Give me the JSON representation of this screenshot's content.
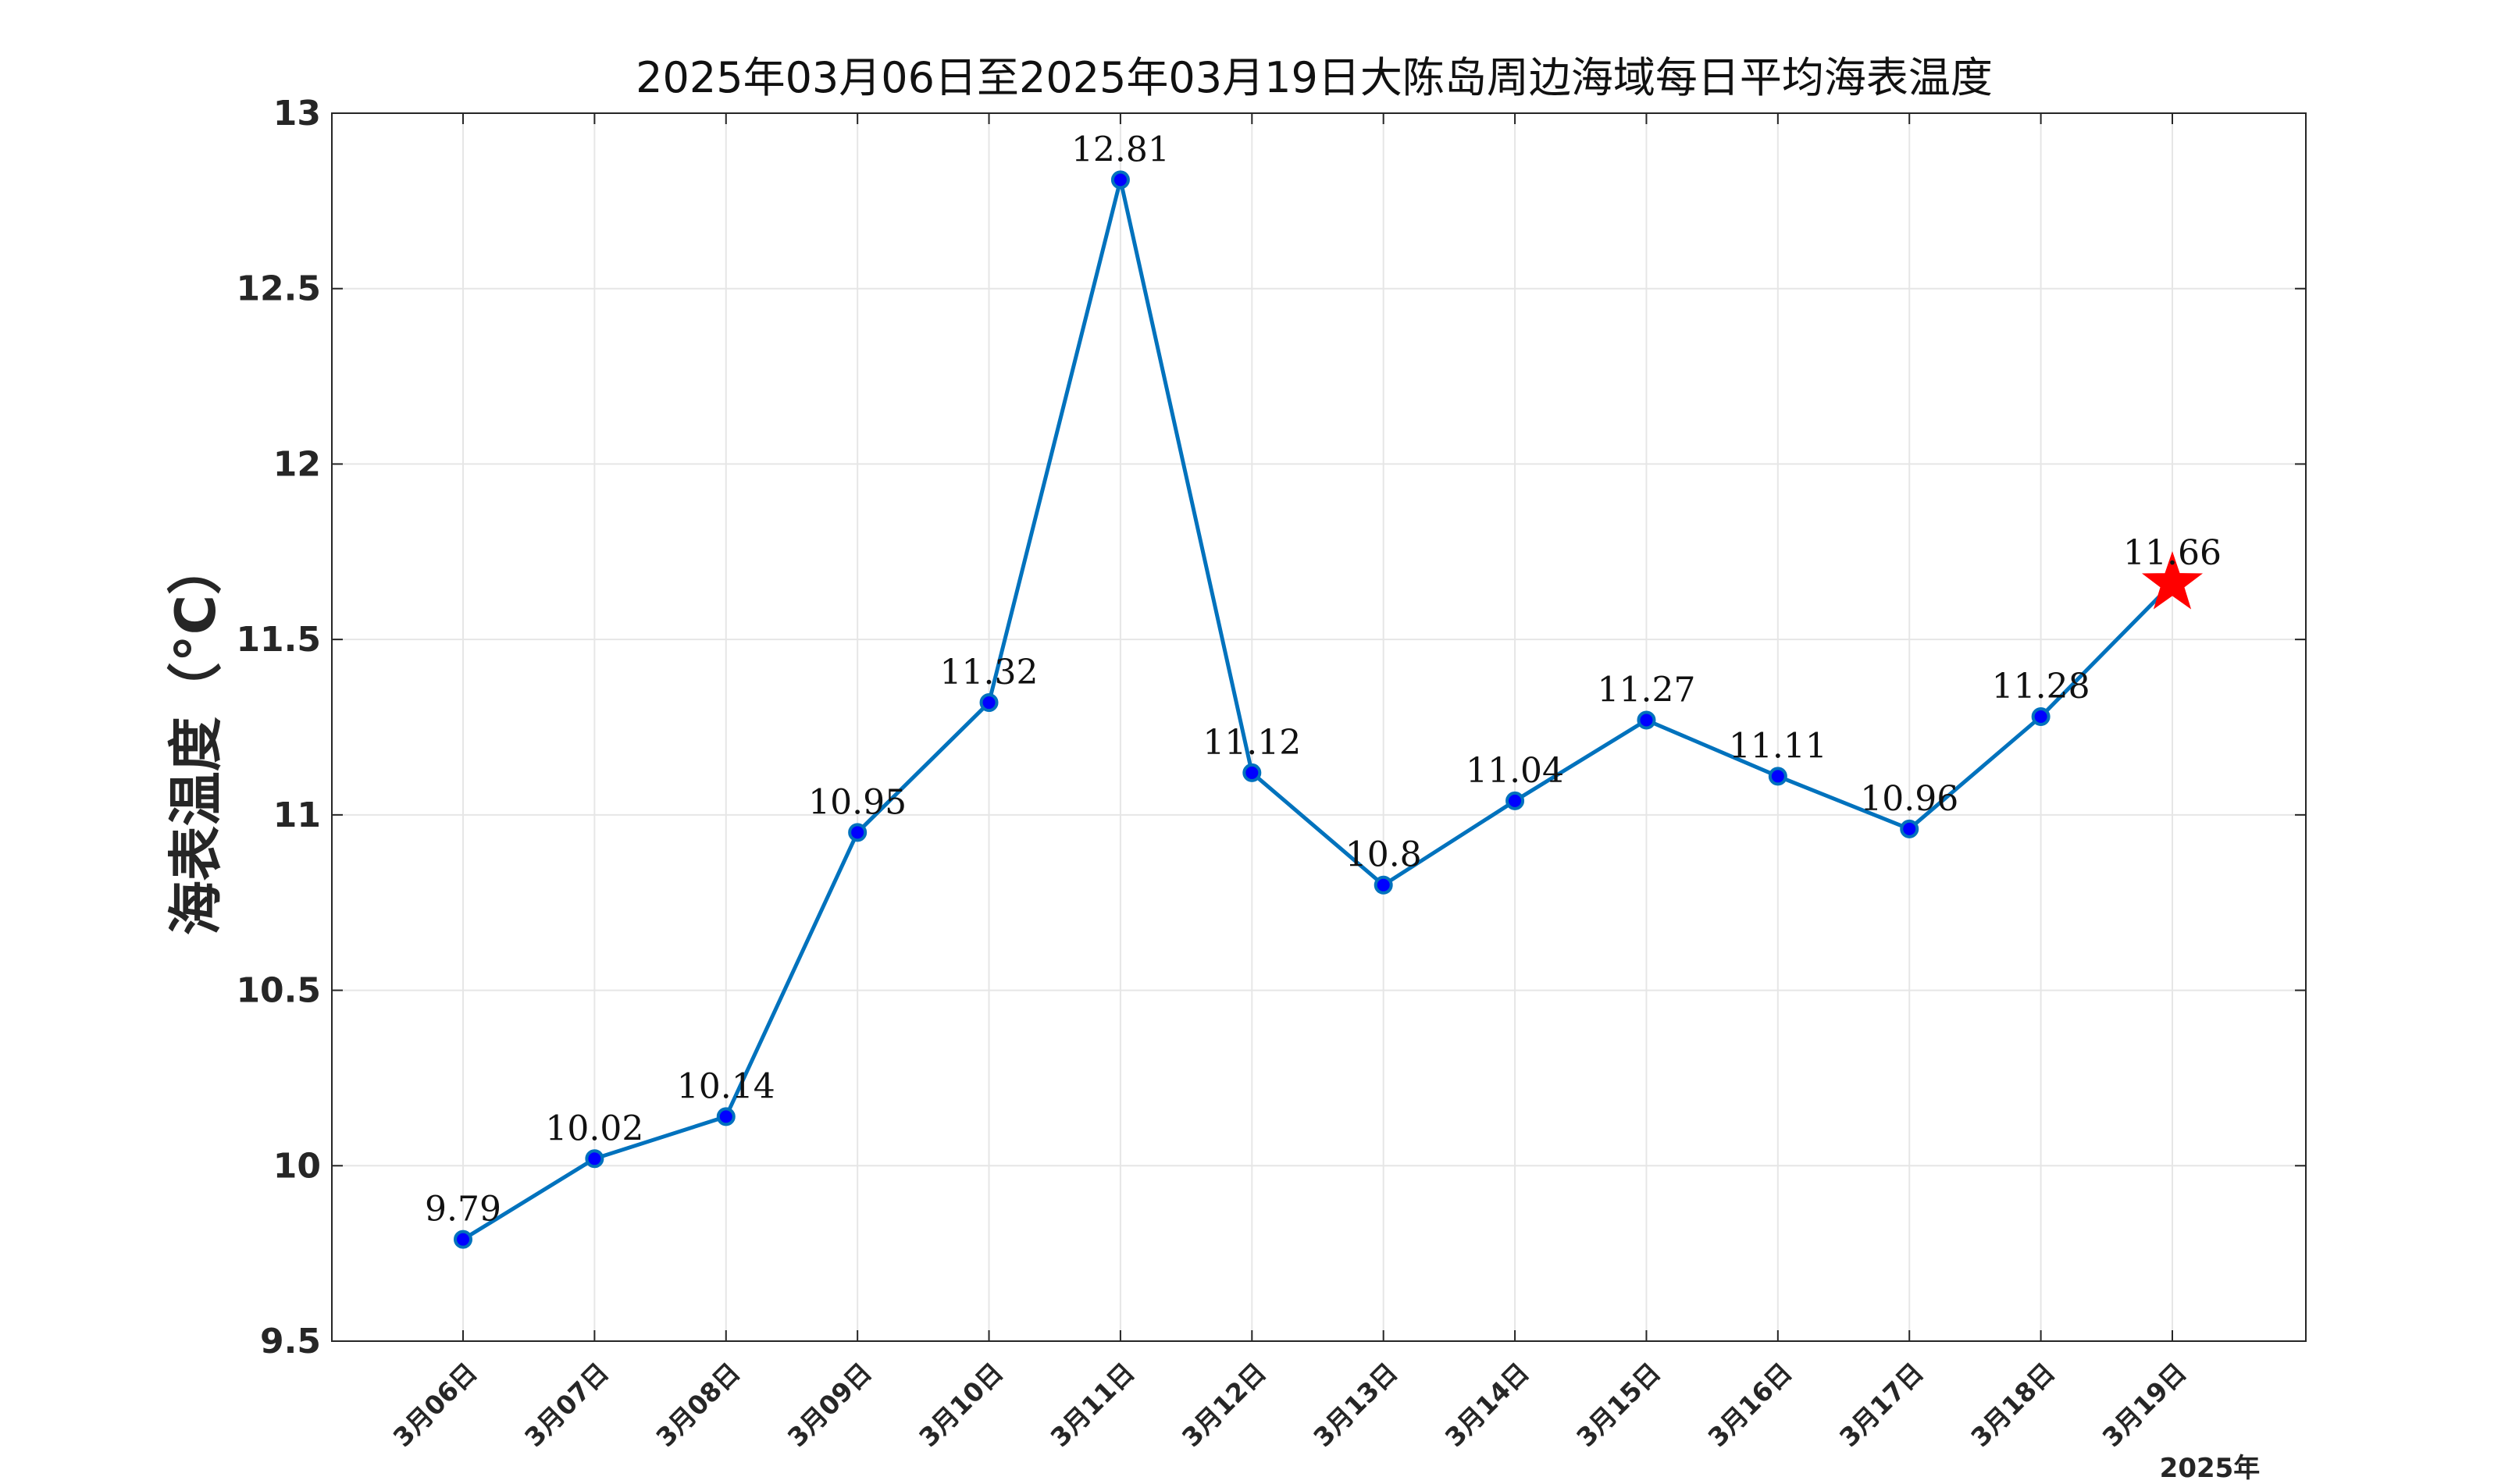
{
  "chart_data": {
    "type": "line",
    "title": "2025年03月06日至2025年03月19日大陈岛周边海域每日平均海表温度",
    "xlabel": "",
    "ylabel": "海表温度（°C）",
    "year_label": "2025年",
    "categories": [
      "3月06日",
      "3月07日",
      "3月08日",
      "3月09日",
      "3月10日",
      "3月11日",
      "3月12日",
      "3月13日",
      "3月14日",
      "3月15日",
      "3月16日",
      "3月17日",
      "3月18日",
      "3月19日"
    ],
    "series": [
      {
        "values": [
          9.79,
          10.02,
          10.14,
          10.95,
          11.32,
          12.81,
          11.12,
          10.8,
          11.04,
          11.27,
          11.11,
          10.96,
          11.28,
          11.66
        ],
        "data_labels": [
          "9.79",
          "10.02",
          "10.14",
          "10.95",
          "11.32",
          "12.81",
          "11.12",
          "10.8",
          "11.04",
          "11.27",
          "11.11",
          "10.96",
          "11.28",
          "11.66"
        ],
        "line_color": "#0072BD",
        "marker_color": "#0000FF",
        "last_marker": "star",
        "last_marker_color": "#FF0000"
      }
    ],
    "ylim": [
      9.5,
      13
    ],
    "yticks": [
      "9.5",
      "10",
      "10.5",
      "11",
      "11.5",
      "12",
      "12.5",
      "13"
    ],
    "grid": true,
    "legend": "none"
  }
}
